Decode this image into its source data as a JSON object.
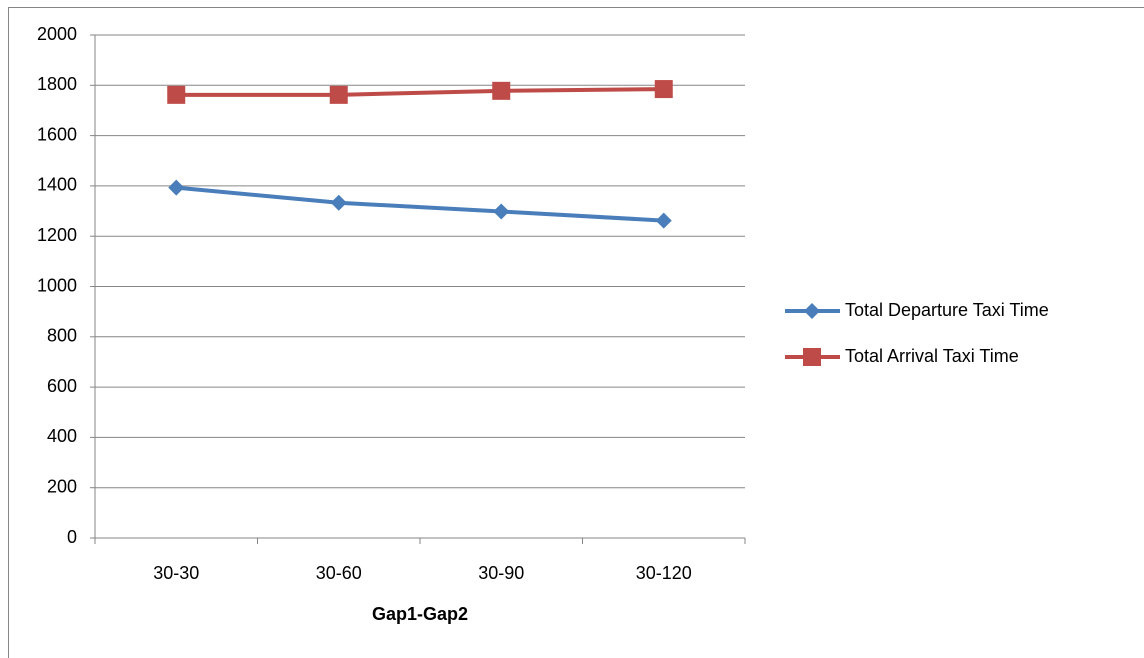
{
  "chart_data": {
    "type": "line",
    "x_label": "Gap1-Gap2",
    "categories": [
      "30-30",
      "30-60",
      "30-90",
      "30-120"
    ],
    "series": [
      {
        "name": "Total Departure Taxi Time",
        "color": "#4a7ebb",
        "marker": "diamond",
        "values": [
          1393,
          1333,
          1298,
          1262
        ]
      },
      {
        "name": "Total Arrival Taxi Time",
        "color": "#be4b48",
        "marker": "square",
        "values": [
          1762,
          1762,
          1778,
          1785
        ]
      }
    ],
    "ylim": [
      0,
      2000
    ],
    "yticks": [
      0,
      200,
      400,
      600,
      800,
      1000,
      1200,
      1400,
      1600,
      1800,
      2000
    ],
    "grid": true,
    "legend": "right"
  }
}
